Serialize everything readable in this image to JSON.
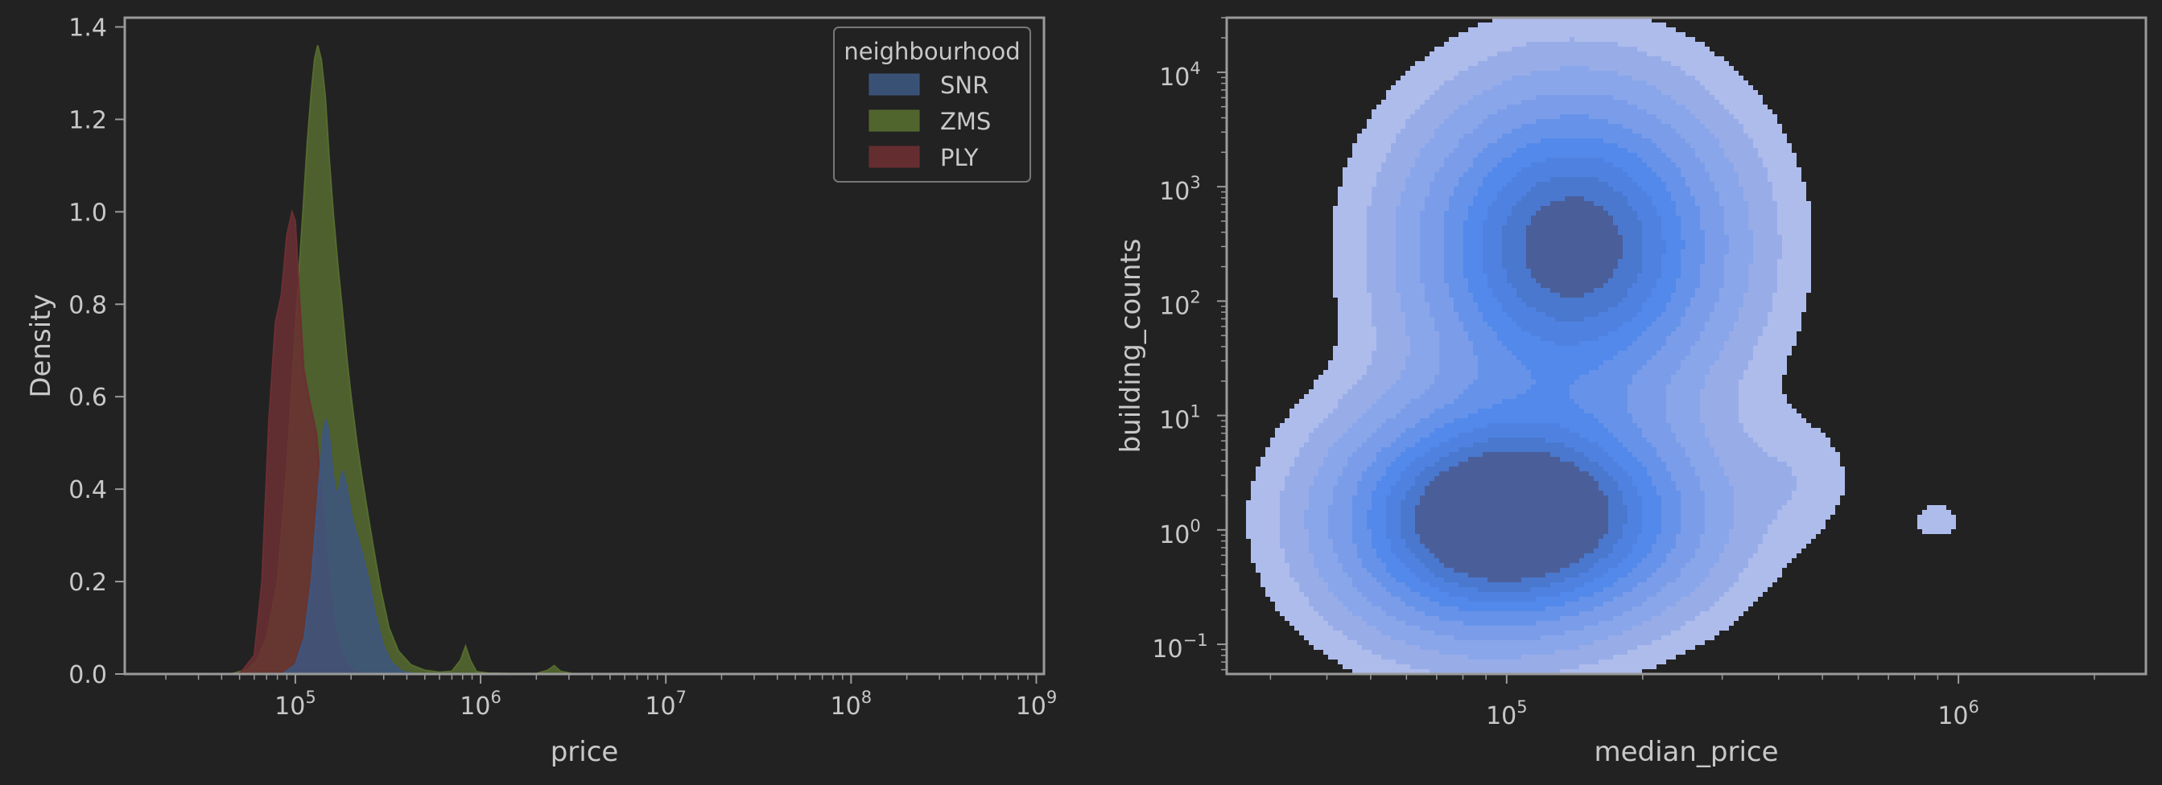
{
  "chart_data": [
    {
      "type": "area",
      "title": "",
      "xlabel": "price",
      "ylabel": "Density",
      "xscale": "log",
      "xlim": [
        12000,
        1100000000
      ],
      "ylim": [
        0,
        1.42
      ],
      "x_ticks": [
        100000,
        1000000,
        10000000,
        100000000,
        1000000000
      ],
      "x_tick_labels": [
        {
          "base": "10",
          "exp": "5"
        },
        {
          "base": "10",
          "exp": "6"
        },
        {
          "base": "10",
          "exp": "7"
        },
        {
          "base": "10",
          "exp": "8"
        },
        {
          "base": "10",
          "exp": "9"
        }
      ],
      "y_ticks": [
        0,
        0.2,
        0.4,
        0.6,
        0.8,
        1.0,
        1.2,
        1.4
      ],
      "y_tick_labels": [
        "0.0",
        "0.2",
        "0.4",
        "0.6",
        "0.8",
        "1.0",
        "1.2",
        "1.4"
      ],
      "grid": false,
      "legend": {
        "title": "neighbourhood",
        "placement": "top-right"
      },
      "series": [
        {
          "name": "ZMS",
          "color": "#556b2f",
          "x": [
            45000,
            55000,
            62000,
            70000,
            80000,
            90000,
            100000,
            110000,
            116000,
            122000,
            127000,
            132000,
            138000,
            145000,
            152000,
            160000,
            170000,
            180000,
            190000,
            200000,
            215000,
            230000,
            250000,
            270000,
            290000,
            320000,
            360000,
            420000,
            500000,
            600000,
            700000,
            780000,
            830000,
            880000,
            950000,
            1100000,
            1500000,
            2000000,
            2300000,
            2500000,
            2700000,
            3200000
          ],
          "y": [
            0,
            0.01,
            0.03,
            0.08,
            0.2,
            0.45,
            0.75,
            1.0,
            1.15,
            1.26,
            1.33,
            1.36,
            1.33,
            1.25,
            1.12,
            1.0,
            0.88,
            0.78,
            0.68,
            0.6,
            0.5,
            0.42,
            0.33,
            0.25,
            0.18,
            0.1,
            0.05,
            0.02,
            0.008,
            0.004,
            0.006,
            0.03,
            0.06,
            0.03,
            0.005,
            0.002,
            0.001,
            0.001,
            0.008,
            0.018,
            0.006,
            0
          ]
        },
        {
          "name": "PLY",
          "color": "#6b2f32",
          "x": [
            50000,
            60000,
            66000,
            72000,
            78000,
            84000,
            90000,
            96000,
            100000,
            105000,
            111000,
            118000,
            124000,
            130000,
            138000,
            148000,
            160000,
            175000,
            190000,
            210000,
            240000
          ],
          "y": [
            0,
            0.04,
            0.2,
            0.55,
            0.76,
            0.82,
            0.95,
            1.0,
            0.98,
            0.82,
            0.66,
            0.6,
            0.56,
            0.52,
            0.4,
            0.25,
            0.12,
            0.05,
            0.02,
            0.005,
            0
          ]
        },
        {
          "name": "SNR",
          "color": "#3d5680",
          "x": [
            85000,
            100000,
            112000,
            122000,
            130000,
            137000,
            142000,
            147000,
            152000,
            158000,
            165000,
            172000,
            180000,
            190000,
            202000,
            215000,
            230000,
            250000,
            270000,
            300000,
            330000,
            380000,
            450000
          ],
          "y": [
            0,
            0.02,
            0.08,
            0.2,
            0.34,
            0.46,
            0.53,
            0.55,
            0.52,
            0.45,
            0.39,
            0.4,
            0.44,
            0.4,
            0.34,
            0.3,
            0.26,
            0.2,
            0.13,
            0.06,
            0.025,
            0.005,
            0
          ]
        }
      ]
    },
    {
      "type": "kde-contour",
      "title": "",
      "xlabel": "median_price",
      "ylabel": "building_counts",
      "xscale": "log",
      "yscale": "log",
      "xlim": [
        24000,
        2600000
      ],
      "ylim": [
        0.055,
        30000
      ],
      "x_ticks": [
        100000,
        1000000
      ],
      "x_tick_labels": [
        {
          "base": "10",
          "exp": "5"
        },
        {
          "base": "10",
          "exp": "6"
        }
      ],
      "y_ticks": [
        0.1,
        1,
        10,
        100,
        1000,
        10000
      ],
      "y_tick_labels": [
        {
          "base": "10",
          "exp": "−1"
        },
        {
          "base": "10",
          "exp": "0"
        },
        {
          "base": "10",
          "exp": "1"
        },
        {
          "base": "10",
          "exp": "2"
        },
        {
          "base": "10",
          "exp": "3"
        },
        {
          "base": "10",
          "exp": "4"
        }
      ],
      "grid": false,
      "levels": 9,
      "colors": [
        "#aebcec",
        "#98ade8",
        "#8aa6ea",
        "#7b9de9",
        "#6693e9",
        "#5389ea",
        "#4f82e0",
        "#4a78cf",
        "#4a5f9a"
      ],
      "modes": [
        {
          "x": 140000,
          "y": 300,
          "weight": 1.0
        },
        {
          "x": 85000,
          "y": 1.2,
          "weight": 0.88
        },
        {
          "x": 140000,
          "y": 1.3,
          "weight": 0.6
        },
        {
          "x": 450000,
          "y": 3,
          "weight": 0.06
        },
        {
          "x": 900000,
          "y": 1.2,
          "weight": 0.05
        }
      ]
    }
  ]
}
